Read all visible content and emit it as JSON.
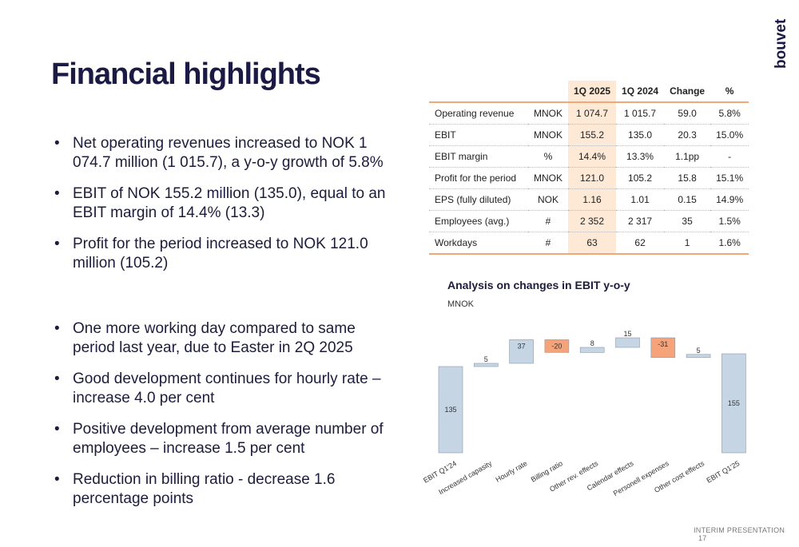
{
  "logo": {
    "text": "bouvet"
  },
  "title": "Financial highlights",
  "bullets_top": [
    "Net operating revenues increased to NOK 1 074.7 million (1 015.7), a y-o-y growth of 5.8%",
    "EBIT of NOK 155.2 million (135.0), equal to an EBIT margin of 14.4% (13.3)",
    "Profit for the period increased to NOK 121.0 million (105.2)"
  ],
  "bullets_bottom": [
    "One more working day compared to same period last year, due to Easter in 2Q 2025",
    "Good development continues for hourly rate – increase 4.0 per cent",
    "Positive development from average number of employees – increase 1.5 per cent",
    "Reduction in billing ratio - decrease 1.6 percentage points"
  ],
  "table": {
    "headers": [
      "",
      "",
      "1Q 2025",
      "1Q 2024",
      "Change",
      "%"
    ],
    "rows": [
      [
        "Operating revenue",
        "MNOK",
        "1 074.7",
        "1 015.7",
        "59.0",
        "5.8%"
      ],
      [
        "EBIT",
        "MNOK",
        "155.2",
        "135.0",
        "20.3",
        "15.0%"
      ],
      [
        "EBIT margin",
        "%",
        "14.4%",
        "13.3%",
        "1.1pp",
        "-"
      ],
      [
        "Profit for the period",
        "MNOK",
        "121.0",
        "105.2",
        "15.8",
        "15.1%"
      ],
      [
        "EPS (fully diluted)",
        "NOK",
        "1.16",
        "1.01",
        "0.15",
        "14.9%"
      ],
      [
        "Employees (avg.)",
        "#",
        "2 352",
        "2 317",
        "35",
        "1.5%"
      ],
      [
        "Workdays",
        "#",
        "63",
        "62",
        "1",
        "1.6%"
      ]
    ]
  },
  "chart_title": "Analysis on changes in EBIT y-o-y",
  "chart_subtitle": "MNOK",
  "chart_data": {
    "type": "bar",
    "subtype": "waterfall",
    "title": "Analysis on changes in EBIT y-o-y",
    "ylabel": "MNOK",
    "categories": [
      "EBIT Q1'24",
      "Increased capasity",
      "Hourly rate",
      "Billing ratio",
      "Other rev. effects",
      "Calendar effects",
      "Personell expenses",
      "Other cost effects",
      "EBIT Q1'25"
    ],
    "values": [
      135,
      5,
      37,
      -20,
      8,
      15,
      -31,
      5,
      155
    ],
    "labels": [
      "135",
      "5",
      "37",
      "-20",
      "8",
      "15",
      "-31",
      "5",
      "155"
    ],
    "kinds": [
      "total",
      "delta",
      "delta",
      "delta",
      "delta",
      "delta",
      "delta",
      "delta",
      "total"
    ],
    "colors": {
      "total": "#c5d5e3",
      "increase": "#c5d5e3",
      "decrease": "#f4a37a",
      "stroke": "#8a9aac"
    },
    "grid": false,
    "legend": "none"
  },
  "footer": {
    "label": "INTERIM PRESENTATION",
    "page": "17"
  }
}
